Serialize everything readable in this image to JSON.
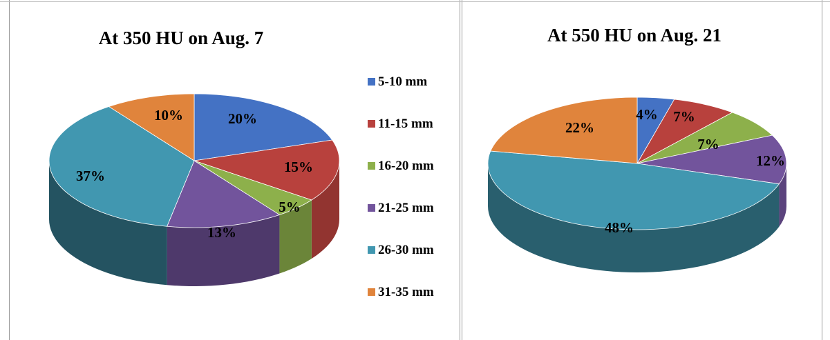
{
  "chart_data": [
    {
      "type": "pie",
      "title": "At 350 HU on Aug. 7",
      "categories": [
        "5-10 mm",
        "11-15 mm",
        "16-20 mm",
        "21-25 mm",
        "26-30 mm",
        "31-35 mm"
      ],
      "values": [
        20,
        15,
        5,
        13,
        37,
        10
      ],
      "data_labels": [
        "20%",
        "15%",
        "5%",
        "13%",
        "37%",
        "10%"
      ],
      "style": "3d",
      "legend": "right"
    },
    {
      "type": "pie",
      "title": "At 550 HU on Aug. 21",
      "categories": [
        "5-10 mm",
        "11-15 mm",
        "16-20 mm",
        "21-25 mm",
        "26-30 mm",
        "31-35 mm"
      ],
      "values": [
        4,
        7,
        7,
        12,
        48,
        22
      ],
      "data_labels": [
        "4%",
        "7%",
        "7%",
        "12%",
        "48%",
        "22%"
      ],
      "style": "3d",
      "legend": "none"
    }
  ],
  "legend": {
    "items": [
      "5-10 mm",
      "11-15 mm",
      "16-20 mm",
      "21-25 mm",
      "26-30 mm",
      "31-35 mm"
    ]
  },
  "colors": [
    "#4472C4",
    "#B8413D",
    "#8DB04B",
    "#72549C",
    "#4197B0",
    "#E0843C"
  ]
}
